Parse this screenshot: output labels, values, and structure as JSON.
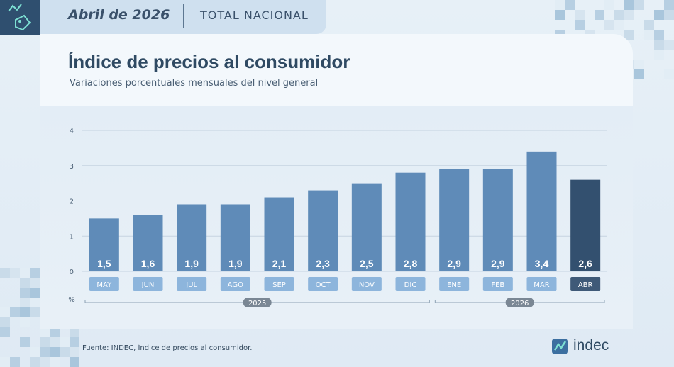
{
  "header": {
    "date": "Abril de 2026",
    "scope": "TOTAL NACIONAL"
  },
  "main": {
    "title": "Índice de precios al consumidor",
    "subtitle": "Variaciones porcentuales mensuales del nivel general"
  },
  "footer": {
    "source": "Fuente: INDEC, Índice de precios al consumidor.",
    "logo_text": "indec"
  },
  "colors": {
    "bar": "#5f8bb8",
    "bar_highlight": "#33506f",
    "month_label_bg": "#8db5dc",
    "month_label_highlight_bg": "#3f5a78"
  },
  "icons": {
    "header_badge": "price-tag-icon"
  },
  "chart_data": {
    "type": "bar",
    "ylabel": "%",
    "ylim": [
      0,
      4
    ],
    "yticks": [
      "0",
      "1",
      "2",
      "3",
      "4"
    ],
    "categories": [
      "MAY",
      "JUN",
      "JUL",
      "AGO",
      "SEP",
      "OCT",
      "NOV",
      "DIC",
      "ENE",
      "FEB",
      "MAR",
      "ABR"
    ],
    "values": [
      1.5,
      1.6,
      1.9,
      1.9,
      2.1,
      2.3,
      2.5,
      2.8,
      2.9,
      2.9,
      3.4,
      2.6
    ],
    "value_labels": [
      "1,5",
      "1,6",
      "1,9",
      "1,9",
      "2,1",
      "2,3",
      "2,5",
      "2,8",
      "2,9",
      "2,9",
      "3,4",
      "2,6"
    ],
    "highlighted_category": "ABR",
    "year_groups": [
      {
        "label": "2025",
        "categories": [
          "MAY",
          "JUN",
          "JUL",
          "AGO",
          "SEP",
          "OCT",
          "NOV",
          "DIC"
        ]
      },
      {
        "label": "2026",
        "categories": [
          "ENE",
          "FEB",
          "MAR",
          "ABR"
        ]
      }
    ],
    "grid": true
  }
}
